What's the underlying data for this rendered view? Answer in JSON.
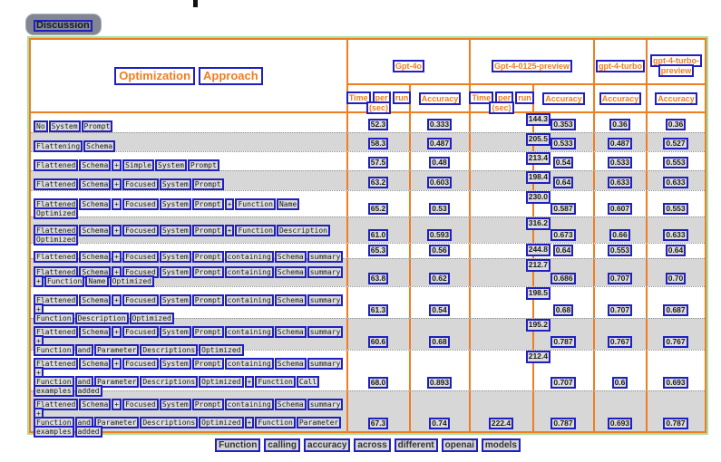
{
  "badge": {
    "label": "Discussion"
  },
  "table": {
    "title": "Optimization Approach",
    "col_groups": [
      {
        "name": "Gpt-4o",
        "name_lines": [
          "Gpt-4o"
        ],
        "columns": [
          "time",
          "accuracy"
        ]
      },
      {
        "name": "Gpt-4-0125-preview",
        "name_lines": [
          "Gpt-4-0125-preview"
        ],
        "columns": [
          "time",
          "accuracy"
        ]
      },
      {
        "name": "gpt-4-turbo",
        "name_lines": [
          "gpt-4-turbo"
        ],
        "columns": [
          "accuracy"
        ]
      },
      {
        "name": "gpt-4-turbo-preview",
        "name_lines": [
          "gpt-4-turbo-",
          "preview"
        ],
        "columns": [
          "accuracy"
        ]
      }
    ],
    "time_header_lines": [
      "Time per run",
      "(sec)"
    ],
    "accuracy_header": "Accuracy",
    "rows": [
      {
        "label_lines": [
          "No System Prompt"
        ],
        "time_gpt4o": "52.3",
        "acc_gpt4o": "0.333",
        "time_0125": "144.3",
        "acc_0125": "0.353",
        "acc_turbo": "0.36",
        "acc_preview": "0.36"
      },
      {
        "label_lines": [
          "Flattening Schema"
        ],
        "time_gpt4o": "58.3",
        "acc_gpt4o": "0.487",
        "time_0125": "205.5",
        "acc_0125": "0.533",
        "acc_turbo": "0.487",
        "acc_preview": "0.527"
      },
      {
        "label_lines": [
          "Flattened Schema + Simple System Prompt"
        ],
        "time_gpt4o": "57.5",
        "acc_gpt4o": "0.48",
        "time_0125": "213.4",
        "acc_0125": "0.54",
        "acc_turbo": "0.533",
        "acc_preview": "0.553"
      },
      {
        "label_lines": [
          "Flattened Schema + Focused System Prompt"
        ],
        "time_gpt4o": "63.2",
        "acc_gpt4o": "0.603",
        "time_0125": "198.4",
        "acc_0125": "0.64",
        "acc_turbo": "0.633",
        "acc_preview": "0.633"
      },
      {
        "label_lines": [
          "Flattened Schema + Focused System Prompt + Function Name",
          "Optimized"
        ],
        "time_gpt4o": "65.2",
        "acc_gpt4o": "0.53",
        "time_0125": "230.0",
        "acc_0125": "0.587",
        "acc_turbo": "0.607",
        "acc_preview": "0.553"
      },
      {
        "label_lines": [
          "Flattened Schema + Focused System Prompt + Function Description",
          "Optimized"
        ],
        "time_gpt4o": "61.0",
        "acc_gpt4o": "0.593",
        "time_0125": "316.2",
        "acc_0125": "0.673",
        "acc_turbo": "0.66",
        "acc_preview": "0.633"
      },
      {
        "label_lines": [
          "Flattened Schema + Focused System Prompt containing Schema summary"
        ],
        "time_gpt4o": "65.3",
        "acc_gpt4o": "0.56",
        "time_0125": "244.8",
        "acc_0125": "0.64",
        "acc_turbo": "0.553",
        "acc_preview": "0.64"
      },
      {
        "label_lines": [
          "Flattened Schema + Focused System Prompt containing Schema summary",
          "+ Function Name Optimized"
        ],
        "time_gpt4o": "63.8",
        "acc_gpt4o": "0.62",
        "time_0125": "212.7",
        "acc_0125": "0.686",
        "acc_turbo": "0.707",
        "acc_preview": "0.70"
      },
      {
        "label_lines": [
          "Flattened Schema + Focused System Prompt containing Schema summary",
          "+",
          "Function Description Optimized"
        ],
        "time_gpt4o": "61.3",
        "acc_gpt4o": "0.54",
        "time_0125": "198.5",
        "acc_0125": "0.68",
        "acc_turbo": "0.707",
        "acc_preview": "0.687"
      },
      {
        "label_lines": [
          "Flattened Schema + Focused System Prompt containing Schema summary",
          "+",
          "Function and Parameter Descriptions Optimized"
        ],
        "time_gpt4o": "60.6",
        "acc_gpt4o": "0.68",
        "time_0125": "195.2",
        "acc_0125": "0.787",
        "acc_turbo": "0.767",
        "acc_preview": "0.767"
      },
      {
        "label_lines": [
          "Flattened Schema + Focused System Prompt containing Schema summary",
          "+",
          "Function and Parameter Descriptions Optimized + Function Call",
          "examples added"
        ],
        "time_gpt4o": "68.0",
        "acc_gpt4o": "0.893",
        "time_0125": "212.4",
        "acc_0125": "0.707",
        "acc_turbo": "0.6",
        "acc_preview": "0.693"
      },
      {
        "label_lines": [
          "Flattened Schema + Focused System Prompt containing Schema summary",
          "+",
          "Function and Parameter Descriptions Optimized + Function Parameter",
          "examples added"
        ],
        "time_gpt4o": "67.3",
        "acc_gpt4o": "0.74",
        "time_0125": "222.4",
        "acc_0125": "0.787",
        "acc_turbo": "0.693",
        "acc_preview": "0.787"
      }
    ]
  },
  "caption": "Function calling accuracy across different openai models",
  "colors": {
    "table_grid": "#ef7d22",
    "annotation_box": "#2020c0",
    "table_region_outline": "#a5e0a0",
    "shaded_row": "#d7d7d7",
    "header_text": "#f07d20"
  }
}
